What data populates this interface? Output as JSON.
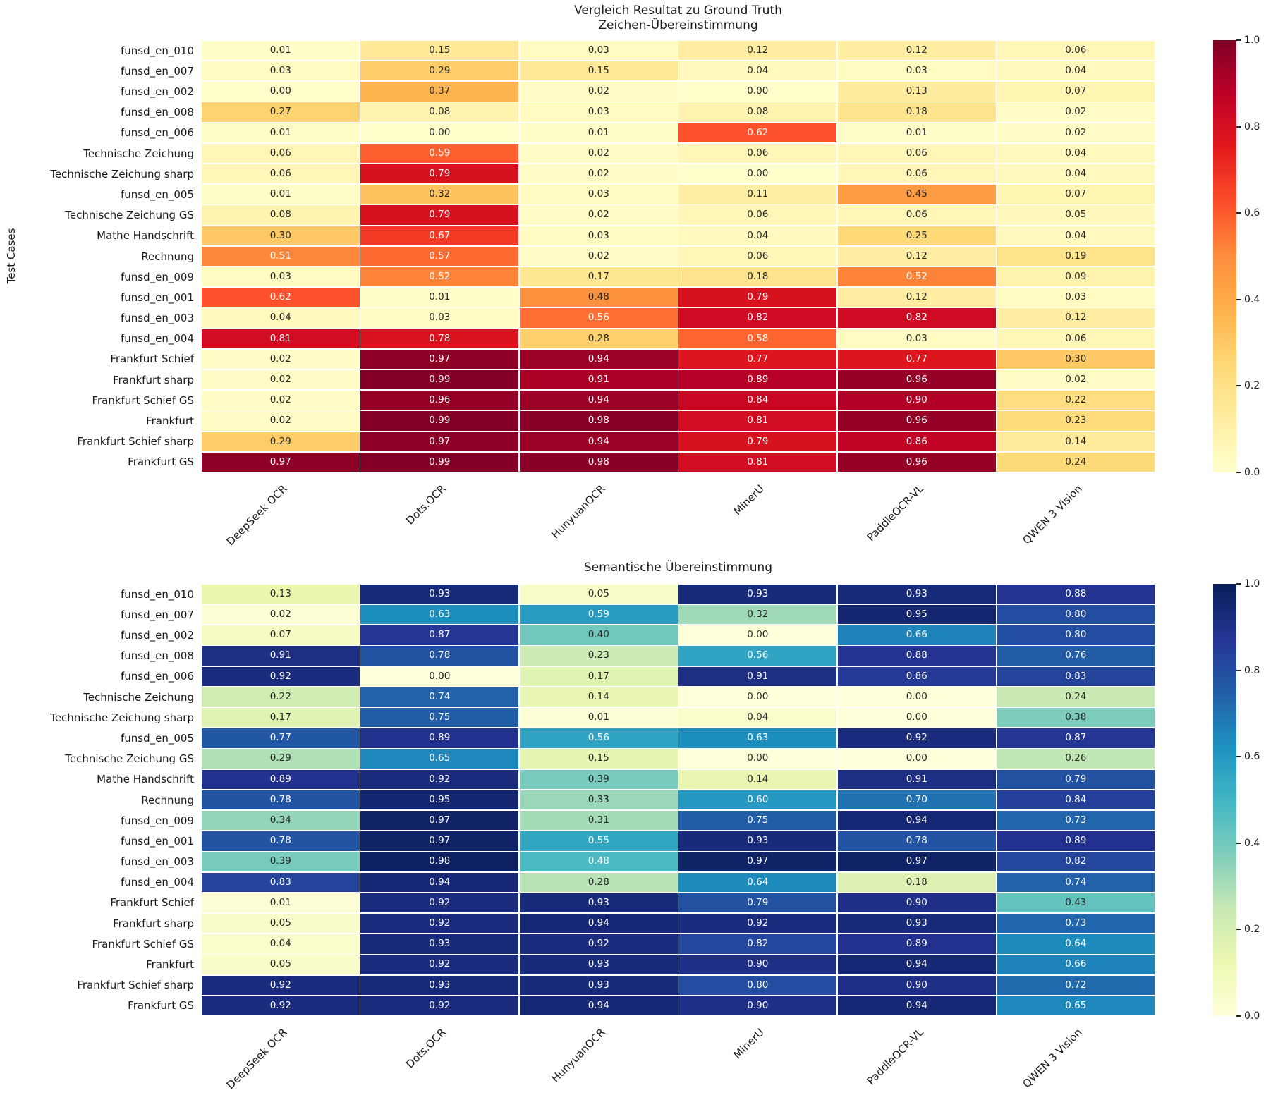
{
  "page": {
    "suptitle": "Vergleich Resultat zu Ground Truth"
  },
  "chart_data": [
    {
      "type": "heatmap",
      "title": "Zeichen-Übereinstimmung",
      "ylabel": "Test Cases",
      "colormap": "YlOrRd",
      "colormap_stops": [
        "#ffffcc",
        "#ffeda0",
        "#fed976",
        "#feb24c",
        "#fd8d3c",
        "#fc4e2a",
        "#e31a1c",
        "#bd0026",
        "#800026"
      ],
      "vmin": 0.0,
      "vmax": 1.0,
      "legend_position": "right-colorbar",
      "colorbar_ticks": [
        "1.0",
        "0.8",
        "0.6",
        "0.4",
        "0.2",
        "0.0"
      ],
      "columns": [
        "DeepSeek OCR",
        "Dots.OCR",
        "HunyuanOCR",
        "MinerU",
        "PaddleOCR-VL",
        "QWEN 3 Vision"
      ],
      "rows": [
        "funsd_en_010",
        "funsd_en_007",
        "funsd_en_002",
        "funsd_en_008",
        "funsd_en_006",
        "Technische Zeichung",
        "Technische Zeichung sharp",
        "funsd_en_005",
        "Technische Zeichung GS",
        "Mathe Handschrift",
        "Rechnung",
        "funsd_en_009",
        "funsd_en_001",
        "funsd_en_003",
        "funsd_en_004",
        "Frankfurt Schief",
        "Frankfurt sharp",
        "Frankfurt Schief GS",
        "Frankfurt",
        "Frankfurt Schief sharp",
        "Frankfurt GS"
      ],
      "values": [
        [
          0.01,
          0.15,
          0.03,
          0.12,
          0.12,
          0.06
        ],
        [
          0.03,
          0.29,
          0.15,
          0.04,
          0.03,
          0.04
        ],
        [
          0.0,
          0.37,
          0.02,
          0.0,
          0.13,
          0.07
        ],
        [
          0.27,
          0.08,
          0.03,
          0.08,
          0.18,
          0.02
        ],
        [
          0.01,
          0.0,
          0.01,
          0.62,
          0.01,
          0.02
        ],
        [
          0.06,
          0.59,
          0.02,
          0.06,
          0.06,
          0.04
        ],
        [
          0.06,
          0.79,
          0.02,
          0.0,
          0.06,
          0.04
        ],
        [
          0.01,
          0.32,
          0.03,
          0.11,
          0.45,
          0.07
        ],
        [
          0.08,
          0.79,
          0.02,
          0.06,
          0.06,
          0.05
        ],
        [
          0.3,
          0.67,
          0.03,
          0.04,
          0.25,
          0.04
        ],
        [
          0.51,
          0.57,
          0.02,
          0.06,
          0.12,
          0.19
        ],
        [
          0.03,
          0.52,
          0.17,
          0.18,
          0.52,
          0.09
        ],
        [
          0.62,
          0.01,
          0.48,
          0.79,
          0.12,
          0.03
        ],
        [
          0.04,
          0.03,
          0.56,
          0.82,
          0.82,
          0.12
        ],
        [
          0.81,
          0.78,
          0.28,
          0.58,
          0.03,
          0.06
        ],
        [
          0.02,
          0.97,
          0.94,
          0.77,
          0.77,
          0.3
        ],
        [
          0.02,
          0.99,
          0.91,
          0.89,
          0.96,
          0.02
        ],
        [
          0.02,
          0.96,
          0.94,
          0.84,
          0.9,
          0.22
        ],
        [
          0.02,
          0.99,
          0.98,
          0.81,
          0.96,
          0.23
        ],
        [
          0.29,
          0.97,
          0.94,
          0.79,
          0.86,
          0.14
        ],
        [
          0.97,
          0.99,
          0.98,
          0.81,
          0.96,
          0.24
        ]
      ]
    },
    {
      "type": "heatmap",
      "title": "Semantische Übereinstimmung",
      "ylabel": "",
      "colormap": "YlGnBu",
      "colormap_stops": [
        "#ffffd9",
        "#edf8b1",
        "#c7e9b4",
        "#7fcdbb",
        "#41b6c4",
        "#1d91c0",
        "#225ea8",
        "#253494",
        "#081d58"
      ],
      "vmin": 0.0,
      "vmax": 1.0,
      "legend_position": "right-colorbar",
      "colorbar_ticks": [
        "1.0",
        "0.8",
        "0.6",
        "0.4",
        "0.2",
        "0.0"
      ],
      "columns": [
        "DeepSeek OCR",
        "Dots.OCR",
        "HunyuanOCR",
        "MinerU",
        "PaddleOCR-VL",
        "QWEN 3 Vision"
      ],
      "rows": [
        "funsd_en_010",
        "funsd_en_007",
        "funsd_en_002",
        "funsd_en_008",
        "funsd_en_006",
        "Technische Zeichung",
        "Technische Zeichung sharp",
        "funsd_en_005",
        "Technische Zeichung GS",
        "Mathe Handschrift",
        "Rechnung",
        "funsd_en_009",
        "funsd_en_001",
        "funsd_en_003",
        "funsd_en_004",
        "Frankfurt Schief",
        "Frankfurt sharp",
        "Frankfurt Schief GS",
        "Frankfurt",
        "Frankfurt Schief sharp",
        "Frankfurt GS"
      ],
      "values": [
        [
          0.13,
          0.93,
          0.05,
          0.93,
          0.93,
          0.88
        ],
        [
          0.02,
          0.63,
          0.59,
          0.32,
          0.95,
          0.8
        ],
        [
          0.07,
          0.87,
          0.4,
          0.0,
          0.66,
          0.8
        ],
        [
          0.91,
          0.78,
          0.23,
          0.56,
          0.88,
          0.76
        ],
        [
          0.92,
          0.0,
          0.17,
          0.91,
          0.86,
          0.83
        ],
        [
          0.22,
          0.74,
          0.14,
          0.0,
          0.0,
          0.24
        ],
        [
          0.17,
          0.75,
          0.01,
          0.04,
          0.0,
          0.38
        ],
        [
          0.77,
          0.89,
          0.56,
          0.63,
          0.92,
          0.87
        ],
        [
          0.29,
          0.65,
          0.15,
          0.0,
          0.0,
          0.26
        ],
        [
          0.89,
          0.92,
          0.39,
          0.14,
          0.91,
          0.79
        ],
        [
          0.78,
          0.95,
          0.33,
          0.6,
          0.7,
          0.84
        ],
        [
          0.34,
          0.97,
          0.31,
          0.75,
          0.94,
          0.73
        ],
        [
          0.78,
          0.97,
          0.55,
          0.93,
          0.78,
          0.89
        ],
        [
          0.39,
          0.98,
          0.48,
          0.97,
          0.97,
          0.82
        ],
        [
          0.83,
          0.94,
          0.28,
          0.64,
          0.18,
          0.74
        ],
        [
          0.01,
          0.92,
          0.93,
          0.79,
          0.9,
          0.43
        ],
        [
          0.05,
          0.92,
          0.94,
          0.92,
          0.93,
          0.73
        ],
        [
          0.04,
          0.93,
          0.92,
          0.82,
          0.89,
          0.64
        ],
        [
          0.05,
          0.92,
          0.93,
          0.9,
          0.94,
          0.66
        ],
        [
          0.92,
          0.93,
          0.93,
          0.8,
          0.9,
          0.72
        ],
        [
          0.92,
          0.92,
          0.94,
          0.9,
          0.94,
          0.65
        ]
      ]
    }
  ],
  "text_colors": {
    "dark": "#262626",
    "light": "#ffffff"
  }
}
